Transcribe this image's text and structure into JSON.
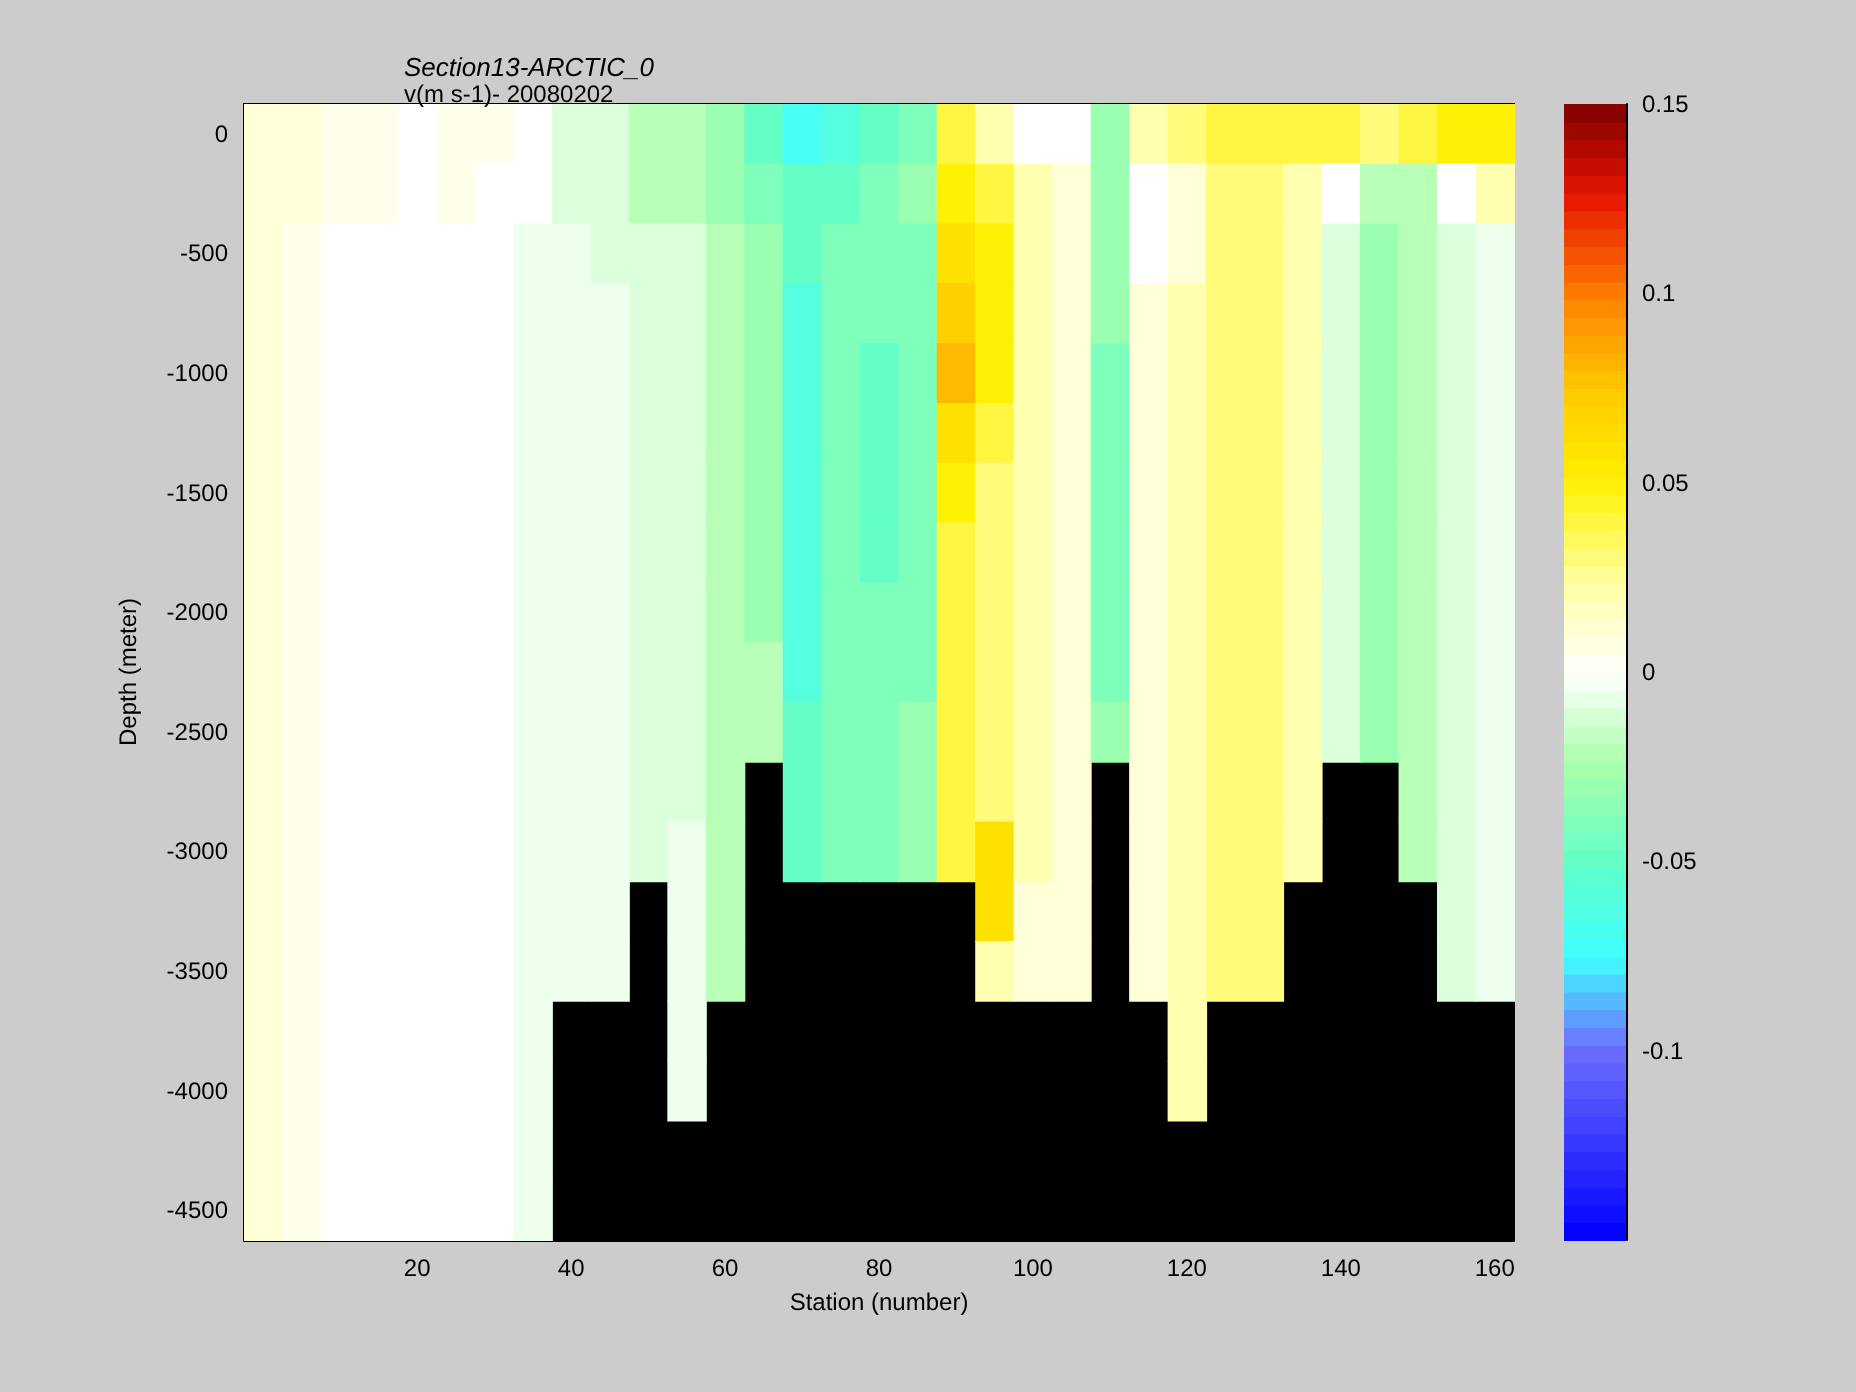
{
  "chart_data": {
    "type": "heatmap",
    "title": "Section13-ARCTIC_0",
    "subtitle": "v(m s-1)- 20080202",
    "xlabel": "Station (number)",
    "ylabel": "Depth (meter)",
    "categories": [
      null,
      null,
      null,
      null,
      "20",
      null,
      null,
      null,
      "40",
      null,
      null,
      null,
      "60",
      null,
      null,
      null,
      "80",
      null,
      null,
      null,
      "100",
      null,
      null,
      null,
      "120",
      null,
      null,
      null,
      "140",
      null,
      null,
      null,
      "160"
    ],
    "y_categories": [
      "0",
      null,
      "-500",
      null,
      "-1000",
      null,
      "-1500",
      null,
      "-2000",
      null,
      "-2500",
      null,
      "-3000",
      null,
      "-3500",
      null,
      "-4000",
      null,
      "-4500"
    ],
    "clim": [
      -0.15,
      0.15
    ],
    "cticks": [
      -0.1,
      -0.05,
      0,
      0.05,
      0.1,
      0.15
    ],
    "cells": [
      [
        0.01,
        0.01,
        0.005,
        0.005,
        0,
        0.005,
        0.005,
        0,
        -0.01,
        -0.01,
        -0.02,
        -0.02,
        -0.03,
        -0.05,
        -0.07,
        -0.06,
        -0.05,
        -0.04,
        0.04,
        0.02,
        0,
        0,
        -0.03,
        0.02,
        0.03,
        0.04,
        0.04,
        0.04,
        0.04,
        0.03,
        0.04,
        0.05,
        0.05
      ],
      [
        0.01,
        0.01,
        0.005,
        0.005,
        0,
        0.005,
        0,
        0,
        -0.01,
        -0.01,
        -0.02,
        -0.02,
        -0.03,
        -0.04,
        -0.05,
        -0.05,
        -0.04,
        -0.03,
        0.05,
        0.04,
        0.02,
        0.01,
        -0.03,
        0,
        0.01,
        0.03,
        0.03,
        0.02,
        0,
        -0.02,
        -0.02,
        0,
        0.02
      ],
      [
        0.01,
        0.005,
        0,
        0,
        0,
        0,
        0,
        -0.005,
        -0.005,
        -0.01,
        -0.01,
        -0.01,
        -0.02,
        -0.03,
        -0.05,
        -0.04,
        -0.04,
        -0.04,
        0.06,
        0.05,
        0.02,
        0.01,
        -0.03,
        0,
        0.01,
        0.03,
        0.03,
        0.02,
        -0.01,
        -0.03,
        -0.02,
        -0.01,
        -0.005
      ],
      [
        0.01,
        0.005,
        0,
        0,
        0,
        0,
        0,
        -0.005,
        -0.005,
        -0.005,
        -0.01,
        -0.01,
        -0.02,
        -0.03,
        -0.06,
        -0.04,
        -0.04,
        -0.04,
        0.07,
        0.05,
        0.02,
        0.01,
        -0.03,
        0.01,
        0.02,
        0.03,
        0.03,
        0.02,
        -0.01,
        -0.03,
        -0.02,
        -0.01,
        -0.005
      ],
      [
        0.01,
        0.005,
        0,
        0,
        0,
        0,
        0,
        -0.005,
        -0.005,
        -0.005,
        -0.01,
        -0.01,
        -0.02,
        -0.03,
        -0.06,
        -0.04,
        -0.05,
        -0.04,
        0.08,
        0.05,
        0.02,
        0.01,
        -0.04,
        0.01,
        0.02,
        0.03,
        0.03,
        0.02,
        -0.01,
        -0.03,
        -0.02,
        -0.01,
        -0.005
      ],
      [
        0.01,
        0.005,
        0,
        0,
        0,
        0,
        0,
        -0.005,
        -0.005,
        -0.005,
        -0.01,
        -0.01,
        -0.02,
        -0.03,
        -0.06,
        -0.04,
        -0.05,
        -0.04,
        0.06,
        0.04,
        0.02,
        0.01,
        -0.04,
        0.01,
        0.02,
        0.03,
        0.03,
        0.02,
        -0.01,
        -0.03,
        -0.02,
        -0.01,
        -0.005
      ],
      [
        0.01,
        0.005,
        0,
        0,
        0,
        0,
        0,
        -0.005,
        -0.005,
        -0.005,
        -0.01,
        -0.01,
        -0.02,
        -0.03,
        -0.06,
        -0.04,
        -0.05,
        -0.04,
        0.05,
        0.03,
        0.02,
        0.01,
        -0.04,
        0.01,
        0.02,
        0.03,
        0.03,
        0.02,
        -0.01,
        -0.03,
        -0.02,
        -0.01,
        -0.005
      ],
      [
        0.01,
        0.005,
        0,
        0,
        0,
        0,
        0,
        -0.005,
        -0.005,
        -0.005,
        -0.01,
        -0.01,
        -0.02,
        -0.03,
        -0.06,
        -0.04,
        -0.05,
        -0.04,
        0.04,
        0.03,
        0.02,
        0.01,
        -0.04,
        0.01,
        0.02,
        0.03,
        0.03,
        0.02,
        -0.01,
        -0.03,
        -0.02,
        -0.01,
        -0.005
      ],
      [
        0.01,
        0.005,
        0,
        0,
        0,
        0,
        0,
        -0.005,
        -0.005,
        -0.005,
        -0.01,
        -0.01,
        -0.02,
        -0.03,
        -0.06,
        -0.04,
        -0.04,
        -0.04,
        0.04,
        0.03,
        0.02,
        0.01,
        -0.04,
        0.01,
        0.02,
        0.03,
        0.03,
        0.02,
        -0.01,
        -0.03,
        -0.02,
        -0.01,
        -0.005
      ],
      [
        0.01,
        0.005,
        0,
        0,
        0,
        0,
        0,
        -0.005,
        -0.005,
        -0.005,
        -0.01,
        -0.01,
        -0.02,
        -0.02,
        -0.06,
        -0.04,
        -0.04,
        -0.04,
        0.04,
        0.03,
        0.02,
        0.01,
        -0.04,
        0.01,
        0.02,
        0.03,
        0.03,
        0.02,
        -0.01,
        -0.03,
        -0.02,
        -0.01,
        -0.005
      ],
      [
        0.01,
        0.005,
        0,
        0,
        0,
        0,
        0,
        -0.005,
        -0.005,
        -0.005,
        -0.01,
        -0.01,
        -0.02,
        -0.02,
        -0.05,
        -0.04,
        -0.04,
        -0.03,
        0.04,
        0.03,
        0.02,
        0.01,
        -0.03,
        0.01,
        0.02,
        0.03,
        0.03,
        0.02,
        -0.01,
        -0.03,
        -0.02,
        -0.01,
        -0.005
      ],
      [
        0.01,
        0.005,
        0,
        0,
        0,
        0,
        0,
        -0.005,
        -0.005,
        -0.005,
        -0.01,
        -0.01,
        -0.02,
        null,
        -0.05,
        -0.04,
        -0.04,
        -0.03,
        0.04,
        0.03,
        0.02,
        0.01,
        null,
        0.01,
        0.02,
        0.03,
        0.03,
        0.02,
        null,
        null,
        -0.02,
        -0.01,
        -0.005
      ],
      [
        0.01,
        0.005,
        0,
        0,
        0,
        0,
        0,
        -0.005,
        -0.005,
        -0.005,
        -0.01,
        -0.005,
        -0.02,
        null,
        -0.05,
        -0.04,
        -0.04,
        -0.03,
        0.04,
        0.06,
        0.02,
        0.01,
        null,
        0.01,
        0.02,
        0.03,
        0.03,
        0.02,
        null,
        null,
        -0.02,
        -0.01,
        -0.005
      ],
      [
        0.01,
        0.005,
        0,
        0,
        0,
        0,
        0,
        -0.005,
        -0.005,
        -0.005,
        null,
        -0.005,
        -0.02,
        null,
        null,
        null,
        null,
        null,
        null,
        0.06,
        0.01,
        0.01,
        null,
        0.01,
        0.02,
        0.03,
        0.03,
        null,
        null,
        null,
        null,
        -0.01,
        -0.005
      ],
      [
        0.01,
        0.005,
        0,
        0,
        0,
        0,
        0,
        -0.005,
        -0.005,
        -0.005,
        null,
        -0.005,
        -0.02,
        null,
        null,
        null,
        null,
        null,
        null,
        0.02,
        0.01,
        0.01,
        null,
        0.01,
        0.02,
        0.03,
        0.03,
        null,
        null,
        null,
        null,
        -0.01,
        -0.005
      ],
      [
        0.01,
        0.005,
        0,
        0,
        0,
        0,
        0,
        -0.005,
        null,
        null,
        null,
        -0.005,
        null,
        null,
        null,
        null,
        null,
        null,
        null,
        null,
        null,
        null,
        null,
        null,
        0.02,
        null,
        null,
        null,
        null,
        null,
        null,
        null,
        null
      ],
      [
        0.01,
        0.005,
        0,
        0,
        0,
        0,
        0,
        -0.005,
        null,
        null,
        null,
        -0.005,
        null,
        null,
        null,
        null,
        null,
        null,
        null,
        null,
        null,
        null,
        null,
        null,
        0.02,
        null,
        null,
        null,
        null,
        null,
        null,
        null,
        null
      ],
      [
        0.01,
        0.005,
        0,
        0,
        0,
        0,
        0,
        -0.005,
        null,
        null,
        null,
        null,
        null,
        null,
        null,
        null,
        null,
        null,
        null,
        null,
        null,
        null,
        null,
        null,
        null,
        null,
        null,
        null,
        null,
        null,
        null,
        null,
        null
      ],
      [
        0.01,
        0.005,
        0,
        0,
        0,
        0,
        0,
        -0.005,
        null,
        null,
        null,
        null,
        null,
        null,
        null,
        null,
        null,
        null,
        null,
        null,
        null,
        null,
        null,
        null,
        null,
        null,
        null,
        null,
        null,
        null,
        null,
        null,
        null
      ]
    ]
  }
}
